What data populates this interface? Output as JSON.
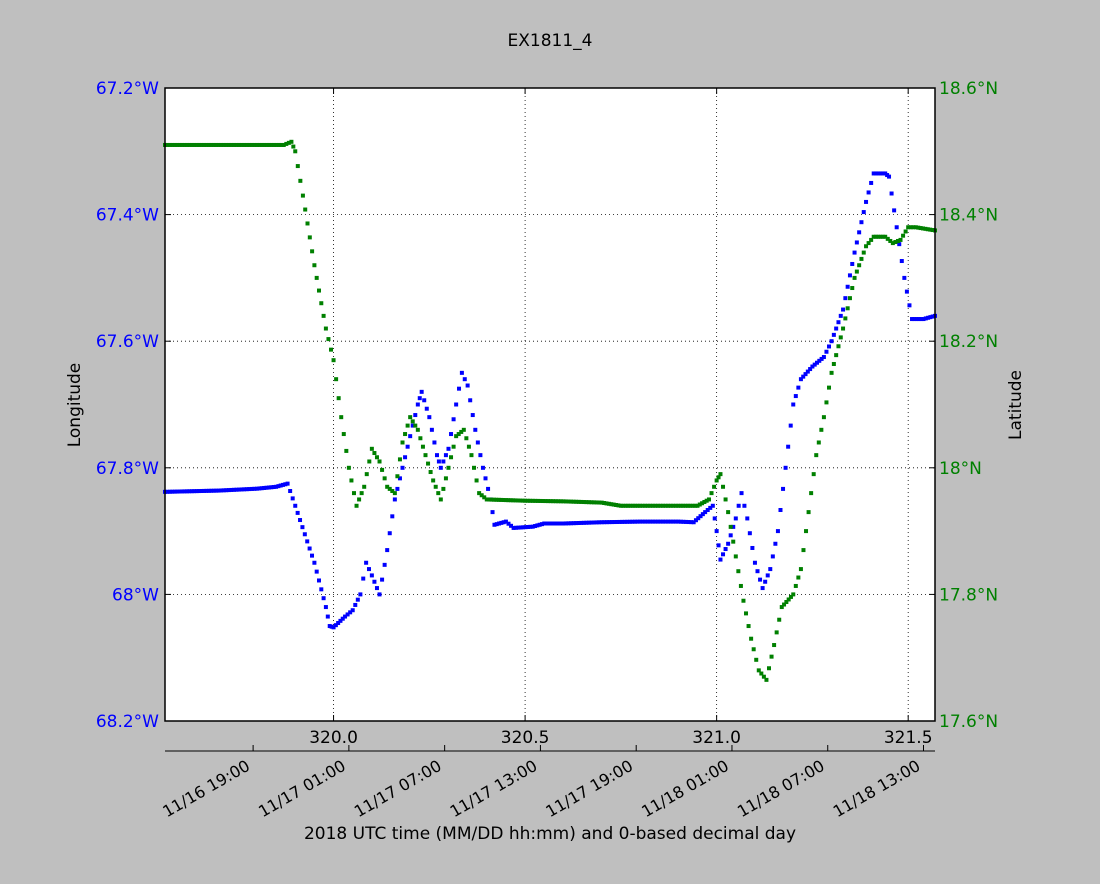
{
  "chart_data": {
    "type": "scatter",
    "title": "EX1811_4",
    "xlabel": "2018 UTC time (MM/DD hh:mm) and 0-based decimal day",
    "ylabel_left": "Longitude",
    "ylabel_right": "Latitude",
    "xlim": [
      319.56,
      321.57
    ],
    "ylim_left": [
      -68.2,
      -67.2
    ],
    "ylim_right": [
      17.6,
      18.6
    ],
    "left_axis_inverted": true,
    "grid": true,
    "x_ticks": [
      {
        "value": 320.0,
        "label": "320.0"
      },
      {
        "value": 320.5,
        "label": "320.5"
      },
      {
        "value": 321.0,
        "label": "321.0"
      },
      {
        "value": 321.5,
        "label": "321.5"
      }
    ],
    "left_ticks": [
      {
        "value": -67.2,
        "label": "67.2°W"
      },
      {
        "value": -67.4,
        "label": "67.4°W"
      },
      {
        "value": -67.6,
        "label": "67.6°W"
      },
      {
        "value": -67.8,
        "label": "67.8°W"
      },
      {
        "value": -68.0,
        "label": "68°W"
      },
      {
        "value": -68.2,
        "label": "68.2°W"
      }
    ],
    "right_ticks": [
      {
        "value": 18.6,
        "label": "18.6°N"
      },
      {
        "value": 18.4,
        "label": "18.4°N"
      },
      {
        "value": 18.2,
        "label": "18.2°N"
      },
      {
        "value": 18.0,
        "label": "18°N"
      },
      {
        "value": 17.8,
        "label": "17.8°N"
      },
      {
        "value": 17.6,
        "label": "17.6°N"
      }
    ],
    "time_ticks": [
      {
        "value": 319.79,
        "label": "11/16 19:00"
      },
      {
        "value": 320.04,
        "label": "11/17 01:00"
      },
      {
        "value": 320.29,
        "label": "11/17 07:00"
      },
      {
        "value": 320.54,
        "label": "11/17 13:00"
      },
      {
        "value": 320.79,
        "label": "11/17 19:00"
      },
      {
        "value": 321.04,
        "label": "11/18 01:00"
      },
      {
        "value": 321.29,
        "label": "11/18 07:00"
      },
      {
        "value": 321.54,
        "label": "11/18 13:00"
      }
    ],
    "series": [
      {
        "axis": "left",
        "color": "#0000ff",
        "points": [
          [
            319.56,
            -67.838
          ],
          [
            319.7,
            -67.836
          ],
          [
            319.8,
            -67.833
          ],
          [
            319.85,
            -67.83
          ],
          [
            319.88,
            -67.825
          ],
          [
            319.9,
            -67.86
          ],
          [
            319.95,
            -67.95
          ],
          [
            319.98,
            -68.02
          ],
          [
            319.99,
            -68.05
          ],
          [
            320.0,
            -68.052
          ],
          [
            320.03,
            -68.035
          ],
          [
            320.05,
            -68.025
          ],
          [
            320.07,
            -68.0
          ],
          [
            320.085,
            -67.95
          ],
          [
            320.1,
            -67.97
          ],
          [
            320.12,
            -68.0
          ],
          [
            320.14,
            -67.93
          ],
          [
            320.16,
            -67.85
          ],
          [
            320.18,
            -67.8
          ],
          [
            320.2,
            -67.75
          ],
          [
            320.22,
            -67.7
          ],
          [
            320.23,
            -67.68
          ],
          [
            320.25,
            -67.72
          ],
          [
            320.27,
            -67.78
          ],
          [
            320.28,
            -67.8
          ],
          [
            320.3,
            -67.77
          ],
          [
            320.32,
            -67.7
          ],
          [
            320.335,
            -67.65
          ],
          [
            320.35,
            -67.67
          ],
          [
            320.37,
            -67.74
          ],
          [
            320.39,
            -67.8
          ],
          [
            320.41,
            -67.85
          ],
          [
            320.42,
            -67.89
          ],
          [
            320.45,
            -67.885
          ],
          [
            320.47,
            -67.895
          ],
          [
            320.52,
            -67.893
          ],
          [
            320.55,
            -67.888
          ],
          [
            320.6,
            -67.888
          ],
          [
            320.7,
            -67.886
          ],
          [
            320.8,
            -67.885
          ],
          [
            320.9,
            -67.885
          ],
          [
            320.94,
            -67.886
          ],
          [
            320.97,
            -67.87
          ],
          [
            320.99,
            -67.86
          ],
          [
            321.0,
            -67.9
          ],
          [
            321.01,
            -67.945
          ],
          [
            321.03,
            -67.92
          ],
          [
            321.05,
            -67.88
          ],
          [
            321.065,
            -67.84
          ],
          [
            321.08,
            -67.88
          ],
          [
            321.1,
            -67.95
          ],
          [
            321.12,
            -67.99
          ],
          [
            321.14,
            -67.96
          ],
          [
            321.16,
            -67.9
          ],
          [
            321.18,
            -67.8
          ],
          [
            321.2,
            -67.7
          ],
          [
            321.22,
            -67.66
          ],
          [
            321.25,
            -67.64
          ],
          [
            321.28,
            -67.625
          ],
          [
            321.3,
            -67.6
          ],
          [
            321.33,
            -67.55
          ],
          [
            321.36,
            -67.46
          ],
          [
            321.39,
            -67.38
          ],
          [
            321.41,
            -67.335
          ],
          [
            321.44,
            -67.335
          ],
          [
            321.45,
            -67.34
          ],
          [
            321.47,
            -67.42
          ],
          [
            321.49,
            -67.5
          ],
          [
            321.51,
            -67.565
          ],
          [
            321.54,
            -67.565
          ],
          [
            321.57,
            -67.56
          ]
        ]
      },
      {
        "axis": "right",
        "color": "#008000",
        "points": [
          [
            319.56,
            18.51
          ],
          [
            319.7,
            18.51
          ],
          [
            319.8,
            18.51
          ],
          [
            319.87,
            18.51
          ],
          [
            319.89,
            18.515
          ],
          [
            319.9,
            18.5
          ],
          [
            319.92,
            18.43
          ],
          [
            319.95,
            18.32
          ],
          [
            319.98,
            18.22
          ],
          [
            320.0,
            18.17
          ],
          [
            320.02,
            18.08
          ],
          [
            320.04,
            18.0
          ],
          [
            320.06,
            17.94
          ],
          [
            320.08,
            17.97
          ],
          [
            320.1,
            18.03
          ],
          [
            320.12,
            18.01
          ],
          [
            320.14,
            17.97
          ],
          [
            320.16,
            17.96
          ],
          [
            320.18,
            18.04
          ],
          [
            320.2,
            18.08
          ],
          [
            320.22,
            18.06
          ],
          [
            320.24,
            18.02
          ],
          [
            320.26,
            17.98
          ],
          [
            320.28,
            17.95
          ],
          [
            320.3,
            18.0
          ],
          [
            320.32,
            18.05
          ],
          [
            320.34,
            18.06
          ],
          [
            320.36,
            18.02
          ],
          [
            320.38,
            17.96
          ],
          [
            320.4,
            17.95
          ],
          [
            320.45,
            17.949
          ],
          [
            320.5,
            17.948
          ],
          [
            320.6,
            17.947
          ],
          [
            320.7,
            17.945
          ],
          [
            320.75,
            17.94
          ],
          [
            320.8,
            17.94
          ],
          [
            320.9,
            17.94
          ],
          [
            320.95,
            17.94
          ],
          [
            320.98,
            17.95
          ],
          [
            321.0,
            17.98
          ],
          [
            321.01,
            17.99
          ],
          [
            321.03,
            17.93
          ],
          [
            321.05,
            17.86
          ],
          [
            321.07,
            17.79
          ],
          [
            321.09,
            17.73
          ],
          [
            321.11,
            17.68
          ],
          [
            321.13,
            17.665
          ],
          [
            321.15,
            17.72
          ],
          [
            321.17,
            17.78
          ],
          [
            321.2,
            17.8
          ],
          [
            321.22,
            17.84
          ],
          [
            321.24,
            17.93
          ],
          [
            321.26,
            18.02
          ],
          [
            321.28,
            18.08
          ],
          [
            321.3,
            18.15
          ],
          [
            321.33,
            18.22
          ],
          [
            321.36,
            18.3
          ],
          [
            321.39,
            18.35
          ],
          [
            321.41,
            18.365
          ],
          [
            321.44,
            18.365
          ],
          [
            321.46,
            18.355
          ],
          [
            321.48,
            18.36
          ],
          [
            321.5,
            18.38
          ],
          [
            321.52,
            18.38
          ],
          [
            321.57,
            18.375
          ]
        ]
      }
    ]
  }
}
